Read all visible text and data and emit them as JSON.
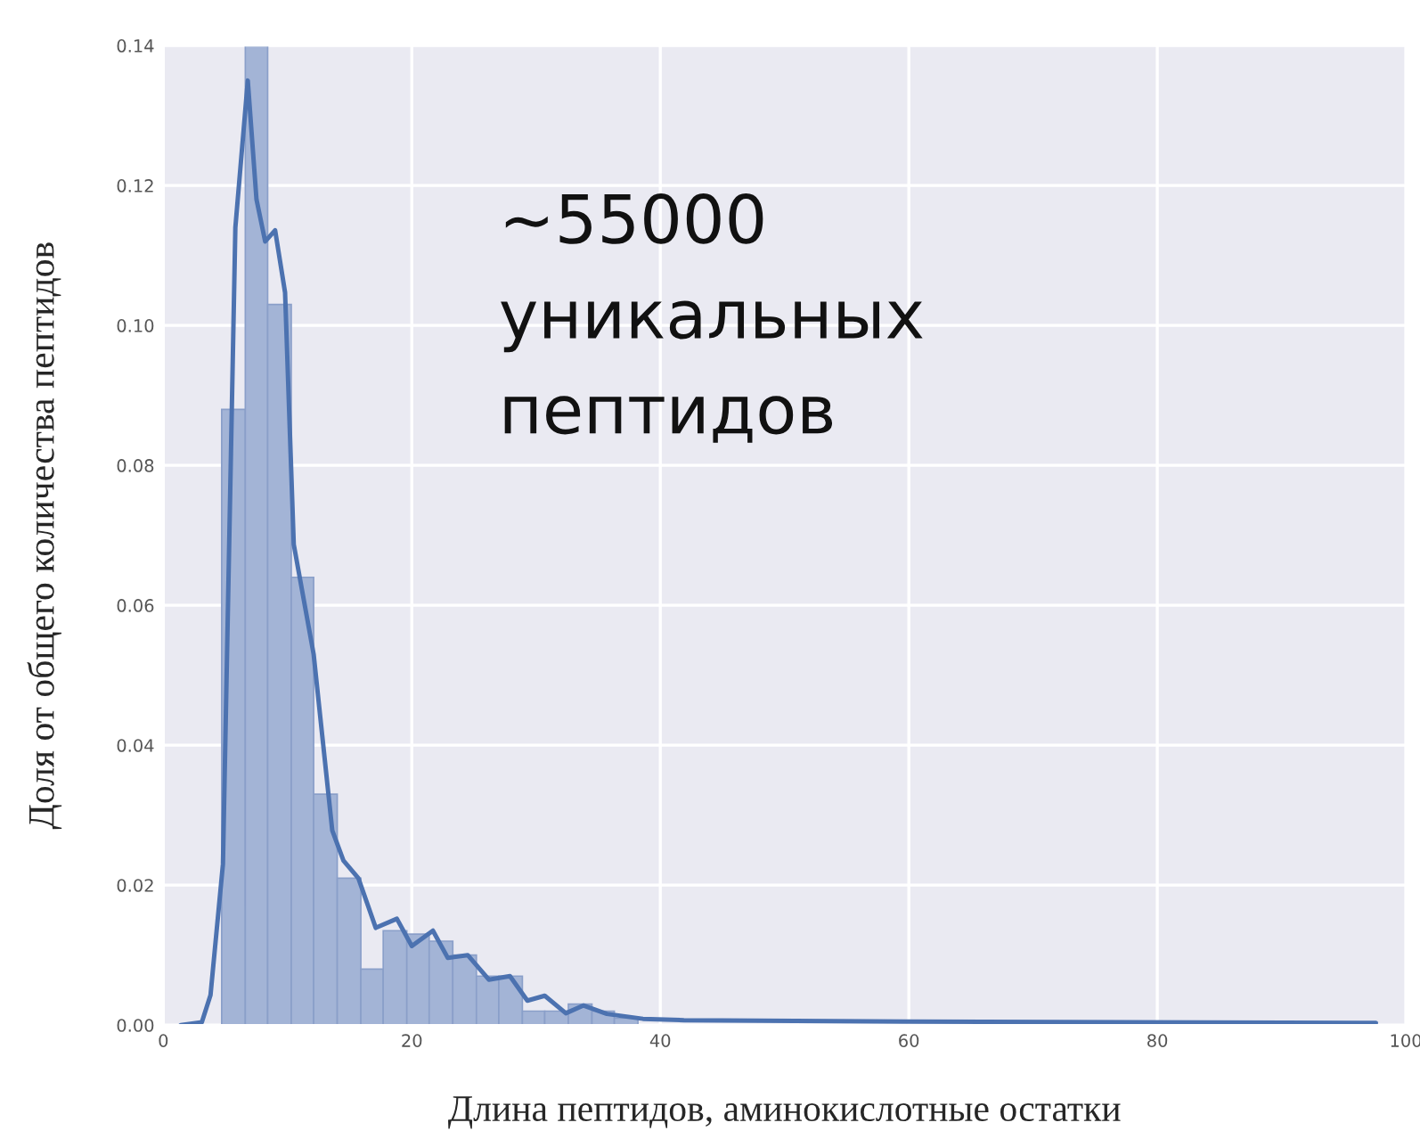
{
  "chart_data": {
    "type": "histogram",
    "xlabel": "Длина пептидов, аминокислотные остатки",
    "ylabel": "Доля от общего количества пептидов",
    "annotations": [
      "~55000\nуникальных\nпептидов"
    ],
    "series": [
      {
        "type": "histogram",
        "color": "#a3b4d6",
        "bins": [
          4.7,
          6.6,
          8.4,
          10.3,
          12.1,
          14.0,
          15.9,
          17.7,
          19.6,
          21.4,
          23.3,
          25.2,
          27.0,
          28.9,
          30.7,
          32.6,
          34.5,
          36.3,
          38.2
        ],
        "values": [
          0.088,
          0.14,
          0.103,
          0.064,
          0.033,
          0.021,
          0.008,
          0.0135,
          0.013,
          0.012,
          0.01,
          0.007,
          0.007,
          0.002,
          0.002,
          0.003,
          0.002,
          0.001
        ]
      },
      {
        "type": "line",
        "color": "#4c72b0",
        "x": [
          1.4,
          3.1,
          3.8,
          4.8,
          5.8,
          6.8,
          7.5,
          8.2,
          9.0,
          9.8,
          10.5,
          12.1,
          13.6,
          14.5,
          15.7,
          17.1,
          18.8,
          20.0,
          21.7,
          22.9,
          24.5,
          26.2,
          27.9,
          29.3,
          30.7,
          32.4,
          33.8,
          35.7,
          38.6,
          41.9,
          60.0,
          97.6
        ],
        "values": [
          0,
          0.0004,
          0.0043,
          0.023,
          0.114,
          0.135,
          0.118,
          0.112,
          0.1136,
          0.1047,
          0.0687,
          0.053,
          0.0278,
          0.0235,
          0.021,
          0.0139,
          0.0152,
          0.0113,
          0.0135,
          0.0096,
          0.01,
          0.0065,
          0.007,
          0.0035,
          0.0042,
          0.0017,
          0.0028,
          0.0016,
          0.0009,
          0.0007,
          0.0005,
          0.0003
        ]
      }
    ],
    "xlim": [
      0,
      100
    ],
    "ylim": [
      0,
      0.14
    ],
    "xticks": [
      0,
      20,
      40,
      60,
      80,
      100
    ],
    "yticks": [
      {
        "value": 0,
        "label": "0.00"
      },
      {
        "value": 0.02,
        "label": "0.02"
      },
      {
        "value": 0.04,
        "label": "0.04"
      },
      {
        "value": 0.06,
        "label": "0.06"
      },
      {
        "value": 0.08,
        "label": "0.08"
      },
      {
        "value": 0.1,
        "label": "0.10"
      },
      {
        "value": 0.12,
        "label": "0.12"
      },
      {
        "value": 0.14,
        "label": "0.14"
      }
    ],
    "grid": true
  }
}
